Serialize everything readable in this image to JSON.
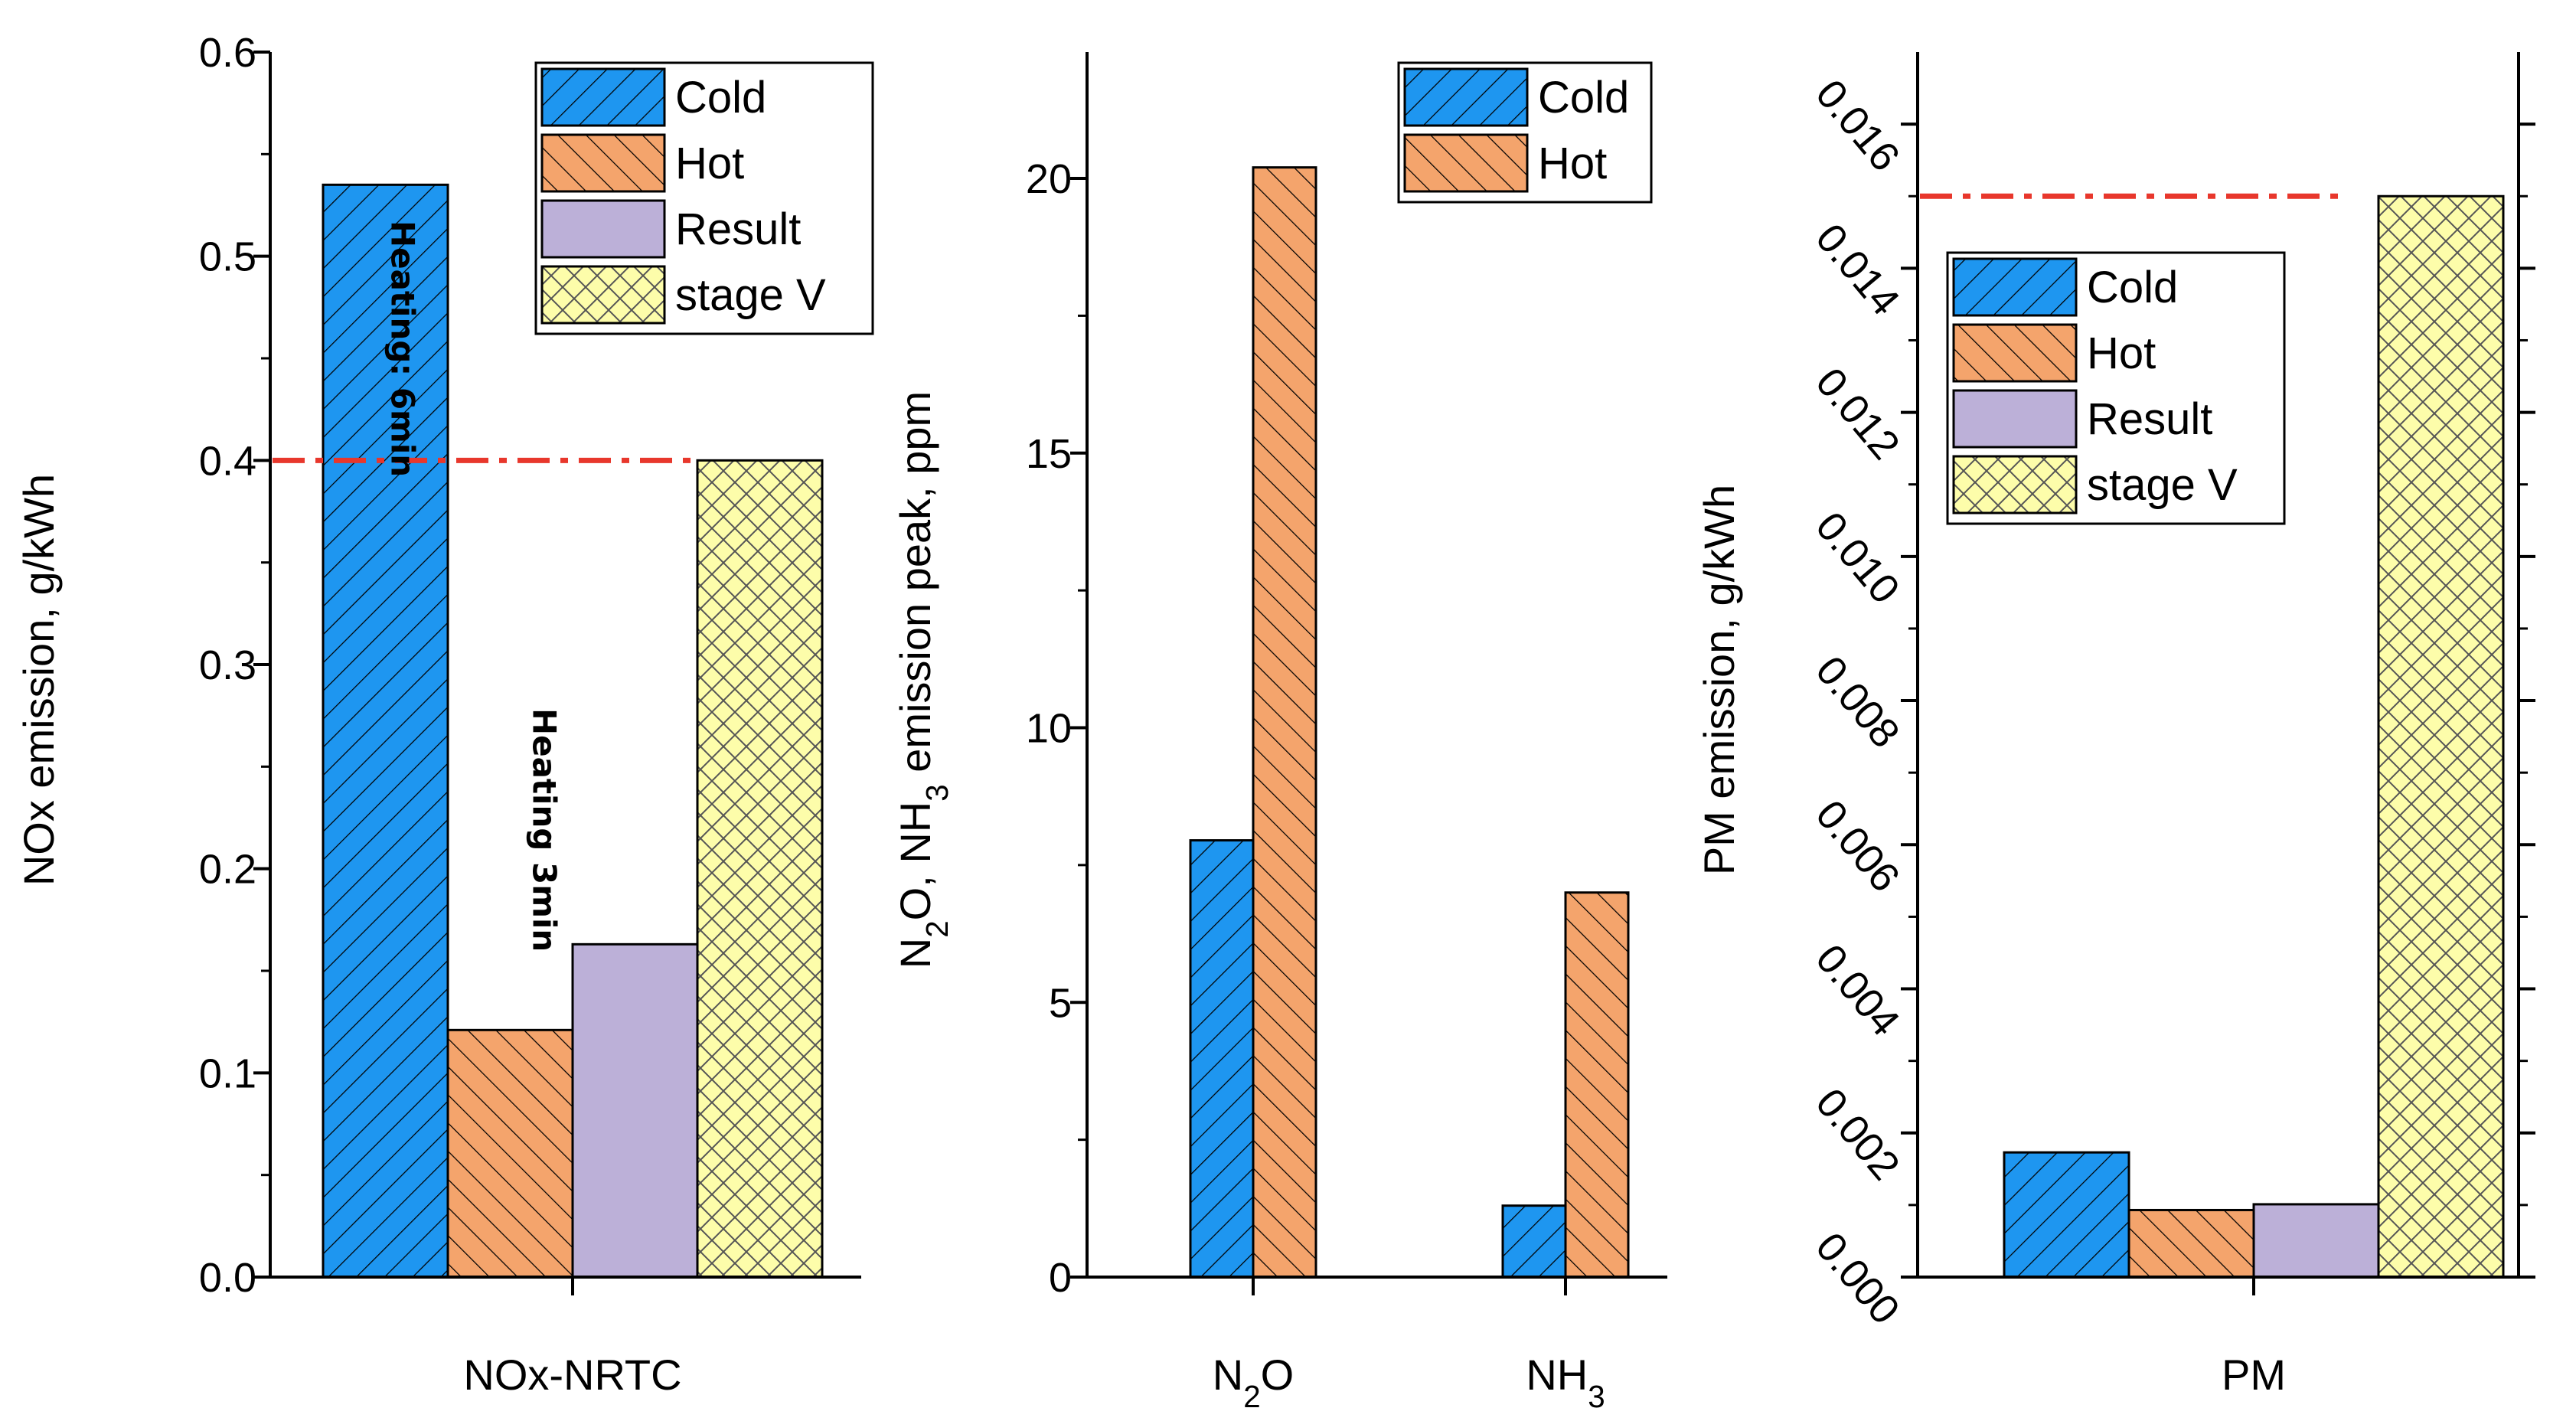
{
  "chart_data": [
    {
      "type": "bar",
      "categories": [
        "NOx-NRTC"
      ],
      "series": [
        {
          "name": "Cold",
          "values": [
            0.535
          ]
        },
        {
          "name": "Hot",
          "values": [
            0.121
          ]
        },
        {
          "name": "Result",
          "values": [
            0.163
          ]
        },
        {
          "name": "stage V",
          "values": [
            0.4
          ]
        }
      ],
      "xlabel": "NOx-NRTC",
      "ylabel": "NOx emission, g/kWh",
      "ylim": [
        0,
        0.6
      ],
      "yticks": [
        "0.0",
        "0.1",
        "0.2",
        "0.3",
        "0.4",
        "0.5",
        "0.6"
      ],
      "reference_line": {
        "value": 0.4,
        "color": "#e8372c",
        "style": "dash-dot"
      },
      "annotations": [
        "Heating: 6min",
        "Heating 3min"
      ],
      "legend": "top-right",
      "grid": false
    },
    {
      "type": "bar",
      "categories": [
        "N₂O",
        "NH₃"
      ],
      "series": [
        {
          "name": "Cold",
          "values": [
            7.95,
            1.3
          ]
        },
        {
          "name": "Hot",
          "values": [
            20.2,
            7.0
          ]
        }
      ],
      "xlabel": "",
      "ylabel": "N₂O, NH₃ emission peak, ppm",
      "ylim": [
        0,
        22.3
      ],
      "yticks": [
        "0",
        "5",
        "10",
        "15",
        "20"
      ],
      "legend": "top-right",
      "grid": false
    },
    {
      "type": "bar",
      "categories": [
        "PM"
      ],
      "series": [
        {
          "name": "Cold",
          "values": [
            0.00173
          ]
        },
        {
          "name": "Hot",
          "values": [
            0.00093
          ]
        },
        {
          "name": "Result",
          "values": [
            0.00101
          ]
        },
        {
          "name": "stage V",
          "values": [
            0.015
          ]
        }
      ],
      "xlabel": "PM",
      "ylabel": "PM emission, g/kWh",
      "ylim": [
        0,
        0.017
      ],
      "yticks": [
        "0.000",
        "0.002",
        "0.004",
        "0.006",
        "0.008",
        "0.010",
        "0.012",
        "0.014",
        "0.016"
      ],
      "reference_line": {
        "value": 0.015,
        "color": "#e8372c",
        "style": "dash-dot"
      },
      "legend": "top-left",
      "grid": false
    }
  ],
  "colors": {
    "Cold": "#1e96f0",
    "Hot": "#f4a46c",
    "Result": "#bcb0d8",
    "stage V": "#fdfdaa"
  }
}
